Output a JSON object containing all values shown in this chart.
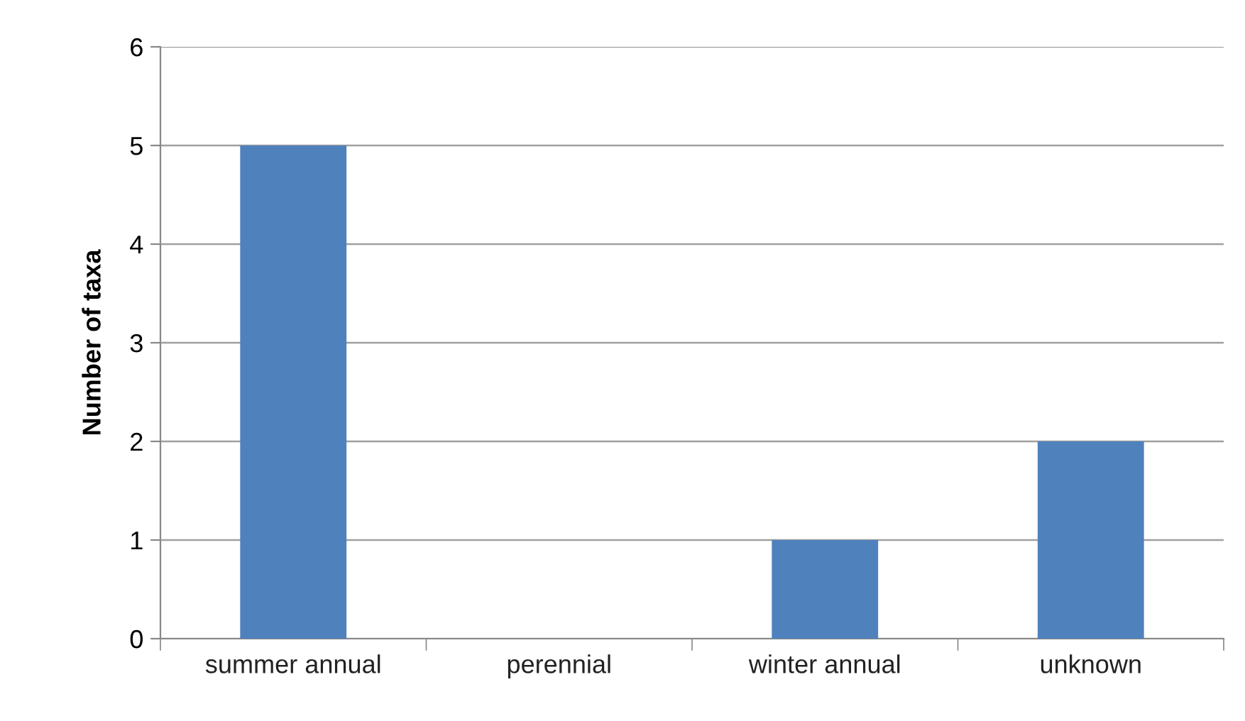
{
  "chart_data": {
    "type": "bar",
    "ylabel": "Number of taxa",
    "categories": [
      "summer annual",
      "perennial",
      "winter annual",
      "unknown"
    ],
    "values": [
      5,
      0,
      1,
      2
    ],
    "color": "#4f81bd",
    "ylim": [
      0,
      6
    ],
    "yticks": [
      0,
      1,
      2,
      3,
      4,
      5,
      6
    ],
    "grid": "y"
  }
}
